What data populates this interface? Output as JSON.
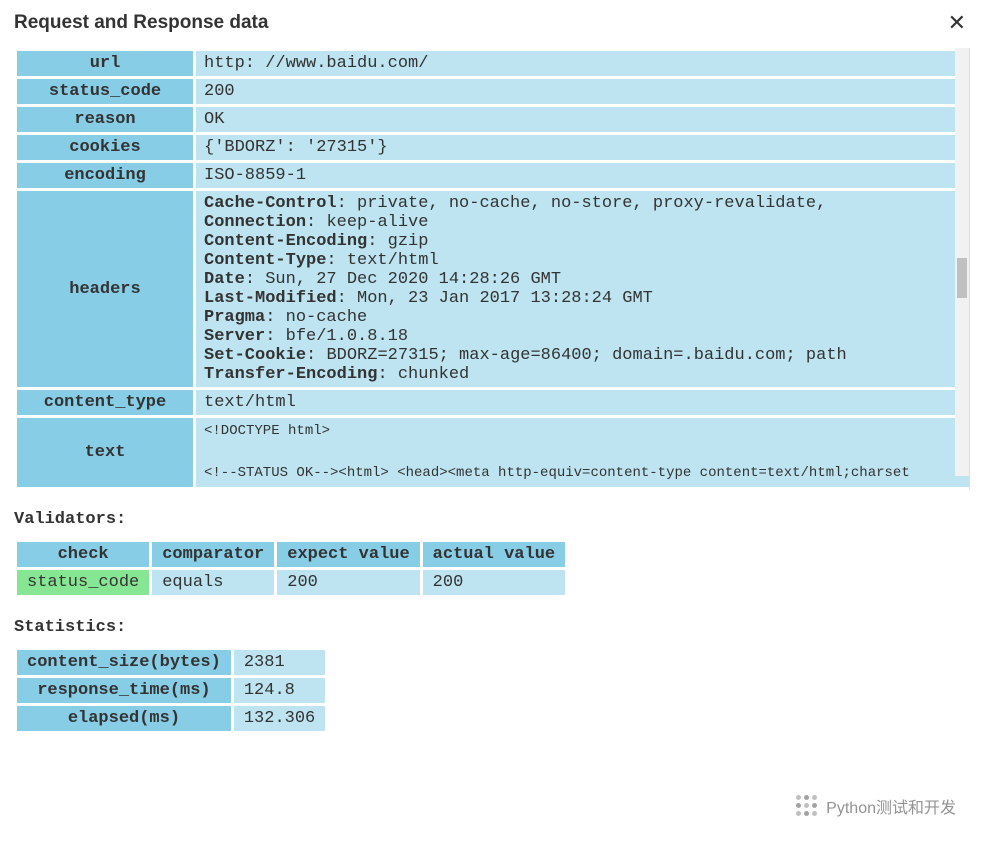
{
  "colors": {
    "header_bg": "#87cde6",
    "cell_bg": "#bde4f0",
    "pass_bg": "#87e693",
    "text": "#333333",
    "page_bg": "#ffffff"
  },
  "dialog": {
    "title": "Request and Response data",
    "close_glyph": "✕"
  },
  "request": {
    "rows": [
      {
        "key": "url",
        "value": "http: //www.baidu.com/"
      },
      {
        "key": "status_code",
        "value": "200"
      },
      {
        "key": "reason",
        "value": "OK"
      },
      {
        "key": "cookies",
        "value": "{'BDORZ': '27315'}"
      },
      {
        "key": "encoding",
        "value": "ISO-8859-1"
      }
    ],
    "headers_key": "headers",
    "headers": [
      {
        "name": "Cache-Control",
        "value": "private, no-cache, no-store, proxy-revalidate, "
      },
      {
        "name": "Connection",
        "value": "keep-alive"
      },
      {
        "name": "Content-Encoding",
        "value": "gzip"
      },
      {
        "name": "Content-Type",
        "value": "text/html"
      },
      {
        "name": "Date",
        "value": "Sun, 27 Dec 2020 14:28:26 GMT"
      },
      {
        "name": "Last-Modified",
        "value": "Mon, 23 Jan 2017 13:28:24 GMT"
      },
      {
        "name": "Pragma",
        "value": "no-cache"
      },
      {
        "name": "Server",
        "value": "bfe/1.0.8.18"
      },
      {
        "name": "Set-Cookie",
        "value": "BDORZ=27315; max-age=86400; domain=.baidu.com; path"
      },
      {
        "name": "Transfer-Encoding",
        "value": "chunked"
      }
    ],
    "content_type_key": "content_type",
    "content_type_value": "text/html",
    "text_key": "text",
    "text_value_lines": [
      "<!DOCTYPE html>",
      "",
      "<!--STATUS OK--><html> <head><meta http-equiv=content-type content=text/html;charset"
    ]
  },
  "validators": {
    "title": "Validators:",
    "columns": [
      "check",
      "comparator",
      "expect value",
      "actual value"
    ],
    "rows": [
      {
        "check": "status_code",
        "comparator": "equals",
        "expect": "200",
        "actual": "200",
        "pass": true
      }
    ]
  },
  "statistics": {
    "title": "Statistics:",
    "rows": [
      {
        "key": "content_size(bytes)",
        "value": "2381"
      },
      {
        "key": "response_time(ms)",
        "value": "124.8"
      },
      {
        "key": "elapsed(ms)",
        "value": "132.306"
      }
    ]
  },
  "watermark": {
    "text": "Python测试和开发"
  }
}
